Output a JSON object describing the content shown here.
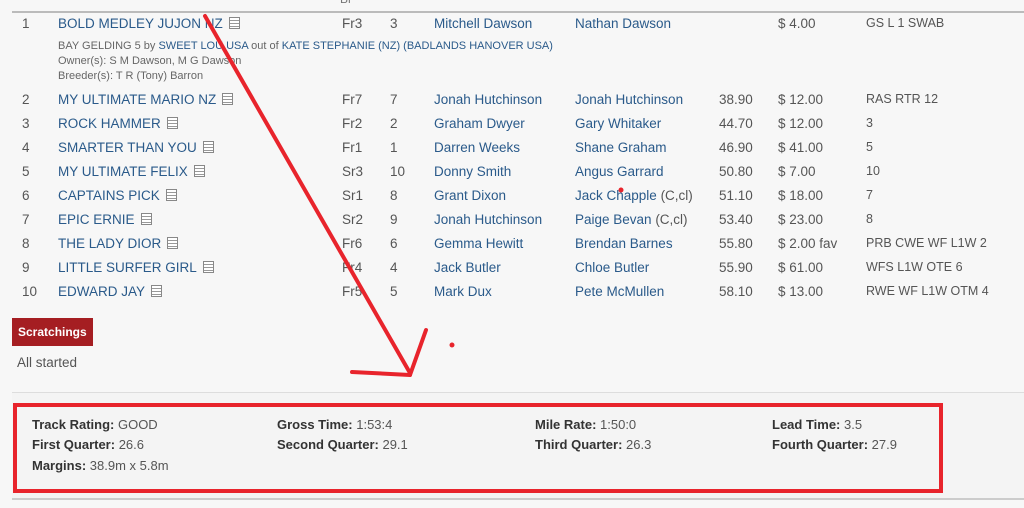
{
  "header_partial": "Br",
  "runners": [
    {
      "num": "1",
      "name": "BOLD MEDLEY JUJON NZ",
      "barrier": "Fr3",
      "tab": "3",
      "driver": "Mitchell Dawson",
      "trainer": "Nathan Dawson",
      "margin": "",
      "odds": "$ 4.00",
      "comments": "GS L 1 SWAB"
    },
    {
      "num": "2",
      "name": "MY ULTIMATE MARIO NZ",
      "barrier": "Fr7",
      "tab": "7",
      "driver": "Jonah Hutchinson",
      "trainer": "Jonah Hutchinson",
      "margin": "38.90",
      "odds": "$ 12.00",
      "comments": "RAS RTR 12"
    },
    {
      "num": "3",
      "name": "ROCK HAMMER",
      "barrier": "Fr2",
      "tab": "2",
      "driver": "Graham Dwyer",
      "trainer": "Gary Whitaker",
      "margin": "44.70",
      "odds": "$ 12.00",
      "comments": "3"
    },
    {
      "num": "4",
      "name": "SMARTER THAN YOU",
      "barrier": "Fr1",
      "tab": "1",
      "driver": "Darren Weeks",
      "trainer": "Shane Graham",
      "margin": "46.90",
      "odds": "$ 41.00",
      "comments": "5"
    },
    {
      "num": "5",
      "name": "MY ULTIMATE FELIX",
      "barrier": "Sr3",
      "tab": "10",
      "driver": "Donny Smith",
      "trainer": "Angus Garrard",
      "margin": "50.80",
      "odds": "$ 7.00",
      "comments": "10"
    },
    {
      "num": "6",
      "name": "CAPTAINS PICK",
      "barrier": "Sr1",
      "tab": "8",
      "driver": "Grant Dixon",
      "trainer": "Jack Chapple",
      "trainer_suffix": " (C,cl)",
      "margin": "51.10",
      "odds": "$ 18.00",
      "comments": "7"
    },
    {
      "num": "7",
      "name": "EPIC ERNIE",
      "barrier": "Sr2",
      "tab": "9",
      "driver": "Jonah Hutchinson",
      "trainer": "Paige Bevan",
      "trainer_suffix": " (C,cl)",
      "margin": "53.40",
      "odds": "$ 23.00",
      "comments": "8"
    },
    {
      "num": "8",
      "name": "THE LADY DIOR",
      "barrier": "Fr6",
      "tab": "6",
      "driver": "Gemma Hewitt",
      "trainer": "Brendan Barnes",
      "margin": "55.80",
      "odds": "$ 2.00 fav",
      "comments": "PRB CWE WF L1W 2"
    },
    {
      "num": "9",
      "name": "LITTLE SURFER GIRL",
      "barrier": "Fr4",
      "tab": "4",
      "driver": "Jack Butler",
      "trainer": "Chloe Butler",
      "margin": "55.90",
      "odds": "$ 61.00",
      "comments": "WFS L1W OTE 6"
    },
    {
      "num": "10",
      "name": "EDWARD JAY",
      "barrier": "Fr5",
      "tab": "5",
      "driver": "Mark Dux",
      "trainer": "Pete McMullen",
      "margin": "58.10",
      "odds": "$ 13.00",
      "comments": "RWE WF L1W OTM 4"
    }
  ],
  "detail": {
    "pre": "BAY GELDING 5 by ",
    "sire": "SWEET LOU USA",
    "mid": " out of ",
    "dam": "KATE STEPHANIE (NZ) (BADLANDS HANOVER USA)",
    "owners": "Owner(s): S M Dawson, M G Dawson",
    "breeders": "Breeder(s): T R (Tony) Barron"
  },
  "scratchings": {
    "label": "Scratchings",
    "text": "All started"
  },
  "stats": [
    {
      "label": "Track Rating:",
      "value": " GOOD"
    },
    {
      "label": "Gross Time:",
      "value": " 1:53:4"
    },
    {
      "label": "Mile Rate:",
      "value": " 1:50:0"
    },
    {
      "label": "Lead Time:",
      "value": " 3.5"
    },
    {
      "label": "First Quarter:",
      "value": " 26.6"
    },
    {
      "label": "Second Quarter:",
      "value": " 29.1"
    },
    {
      "label": "Third Quarter:",
      "value": " 26.3"
    },
    {
      "label": "Fourth Quarter:",
      "value": " 27.9"
    },
    {
      "label": "Margins:",
      "value": " 38.9m x 5.8m"
    }
  ],
  "annotation_color": "#e8242c"
}
